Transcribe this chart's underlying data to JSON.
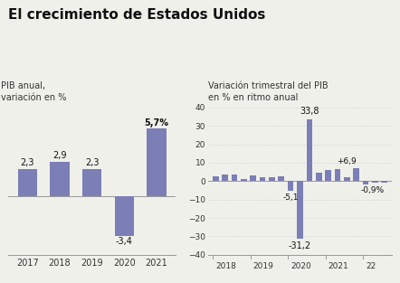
{
  "title": "El crecimiento de Estados Unidos",
  "title_fontsize": 11,
  "title_fontweight": "bold",
  "bar_color": "#7b7fb5",
  "background_color": "#f0f0eb",
  "left_chart": {
    "subtitle": "PIB anual,\nvariación en %",
    "subtitle_fontsize": 7,
    "categories": [
      "2017",
      "2018",
      "2019",
      "2020",
      "2021"
    ],
    "values": [
      2.3,
      2.9,
      2.3,
      -3.4,
      5.7
    ],
    "ylim": [
      -5.0,
      7.5
    ],
    "bar_labels": [
      "2,3",
      "2,9",
      "2,3",
      "-3,4",
      "5,7%"
    ],
    "label_fontsize": 7,
    "tick_fontsize": 7
  },
  "right_chart": {
    "subtitle": "Variación trimestral del PIB\nen % en ritmo anual",
    "subtitle_fontsize": 7,
    "values": [
      2.5,
      3.5,
      3.4,
      1.1,
      3.1,
      2.0,
      2.1,
      2.4,
      -5.1,
      -31.2,
      33.8,
      4.5,
      6.3,
      6.7,
      2.3,
      6.9,
      -1.6,
      -0.6,
      -0.9
    ],
    "ylim": [
      -40,
      40
    ],
    "yticks": [
      -40,
      -30,
      -20,
      -10,
      0,
      10,
      20,
      30,
      40
    ],
    "ytick_fontsize": 6.5,
    "year_labels": [
      "2018",
      "2019",
      "2020",
      "2021",
      "22"
    ],
    "year_positions": [
      0,
      4,
      8,
      12,
      16
    ],
    "year_fontsize": 6.5,
    "annot_33": {
      "xi": 10,
      "yi": 35.5,
      "label": "33,8",
      "ha": "center",
      "va": "bottom",
      "fw": "normal",
      "fs": 7
    },
    "annot_m51": {
      "xi": 8,
      "yi": -6.5,
      "label": "-5,1",
      "ha": "center",
      "va": "top",
      "fw": "normal",
      "fs": 6.5
    },
    "annot_m312": {
      "xi": 9,
      "yi": -33.0,
      "label": "-31,2",
      "ha": "center",
      "va": "top",
      "fw": "normal",
      "fs": 7
    },
    "annot_69": {
      "xi": 15,
      "yi": 8.5,
      "label": "+6,9",
      "ha": "right",
      "va": "bottom",
      "fw": "normal",
      "fs": 6.5
    },
    "annot_m09": {
      "xi": 18,
      "yi": -3.0,
      "label": "-0,9%",
      "ha": "right",
      "va": "top",
      "fw": "normal",
      "fs": 6.5
    }
  }
}
